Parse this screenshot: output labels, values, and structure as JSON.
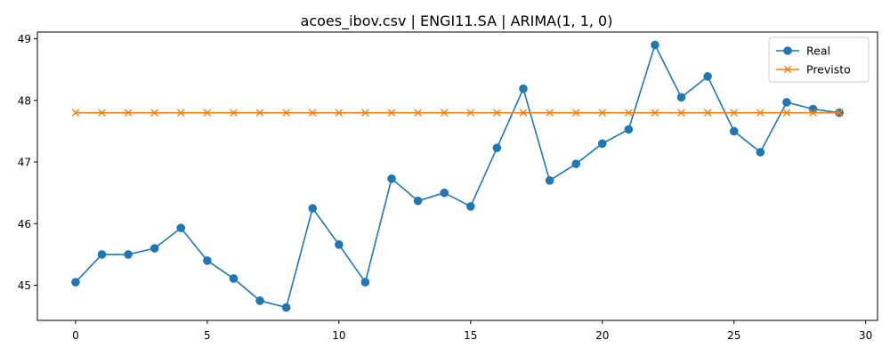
{
  "chart_data": {
    "type": "line",
    "title": "acoes_ibov.csv | ENGI11.SA | ARIMA(1, 1, 0)",
    "xlabel": "",
    "ylabel": "",
    "xlim": [
      -1.45,
      30.45
    ],
    "ylim": [
      44.43,
      49.11
    ],
    "xticks": [
      0,
      5,
      10,
      15,
      20,
      25,
      30
    ],
    "yticks": [
      45,
      46,
      47,
      48,
      49
    ],
    "grid": false,
    "legend_position": "top-right",
    "x": [
      0,
      1,
      2,
      3,
      4,
      5,
      6,
      7,
      8,
      9,
      10,
      11,
      12,
      13,
      14,
      15,
      16,
      17,
      18,
      19,
      20,
      21,
      22,
      23,
      24,
      25,
      26,
      27,
      28,
      29
    ],
    "series": [
      {
        "name": "Real",
        "color": "#1f77b4",
        "marker": "circle",
        "values": [
          45.05,
          45.5,
          45.5,
          45.6,
          45.93,
          45.4,
          45.11,
          44.75,
          44.64,
          46.25,
          45.66,
          45.05,
          46.73,
          46.37,
          46.5,
          46.28,
          47.23,
          48.19,
          46.7,
          46.97,
          47.3,
          47.53,
          48.9,
          48.05,
          48.39,
          47.5,
          47.16,
          47.97,
          47.86,
          47.8
        ]
      },
      {
        "name": "Previsto",
        "color": "#ff7f0e",
        "marker": "x",
        "values": [
          47.8,
          47.8,
          47.8,
          47.8,
          47.8,
          47.8,
          47.8,
          47.8,
          47.8,
          47.8,
          47.8,
          47.8,
          47.8,
          47.8,
          47.8,
          47.8,
          47.8,
          47.8,
          47.8,
          47.8,
          47.8,
          47.8,
          47.8,
          47.8,
          47.8,
          47.8,
          47.8,
          47.8,
          47.8,
          47.8
        ]
      }
    ]
  }
}
